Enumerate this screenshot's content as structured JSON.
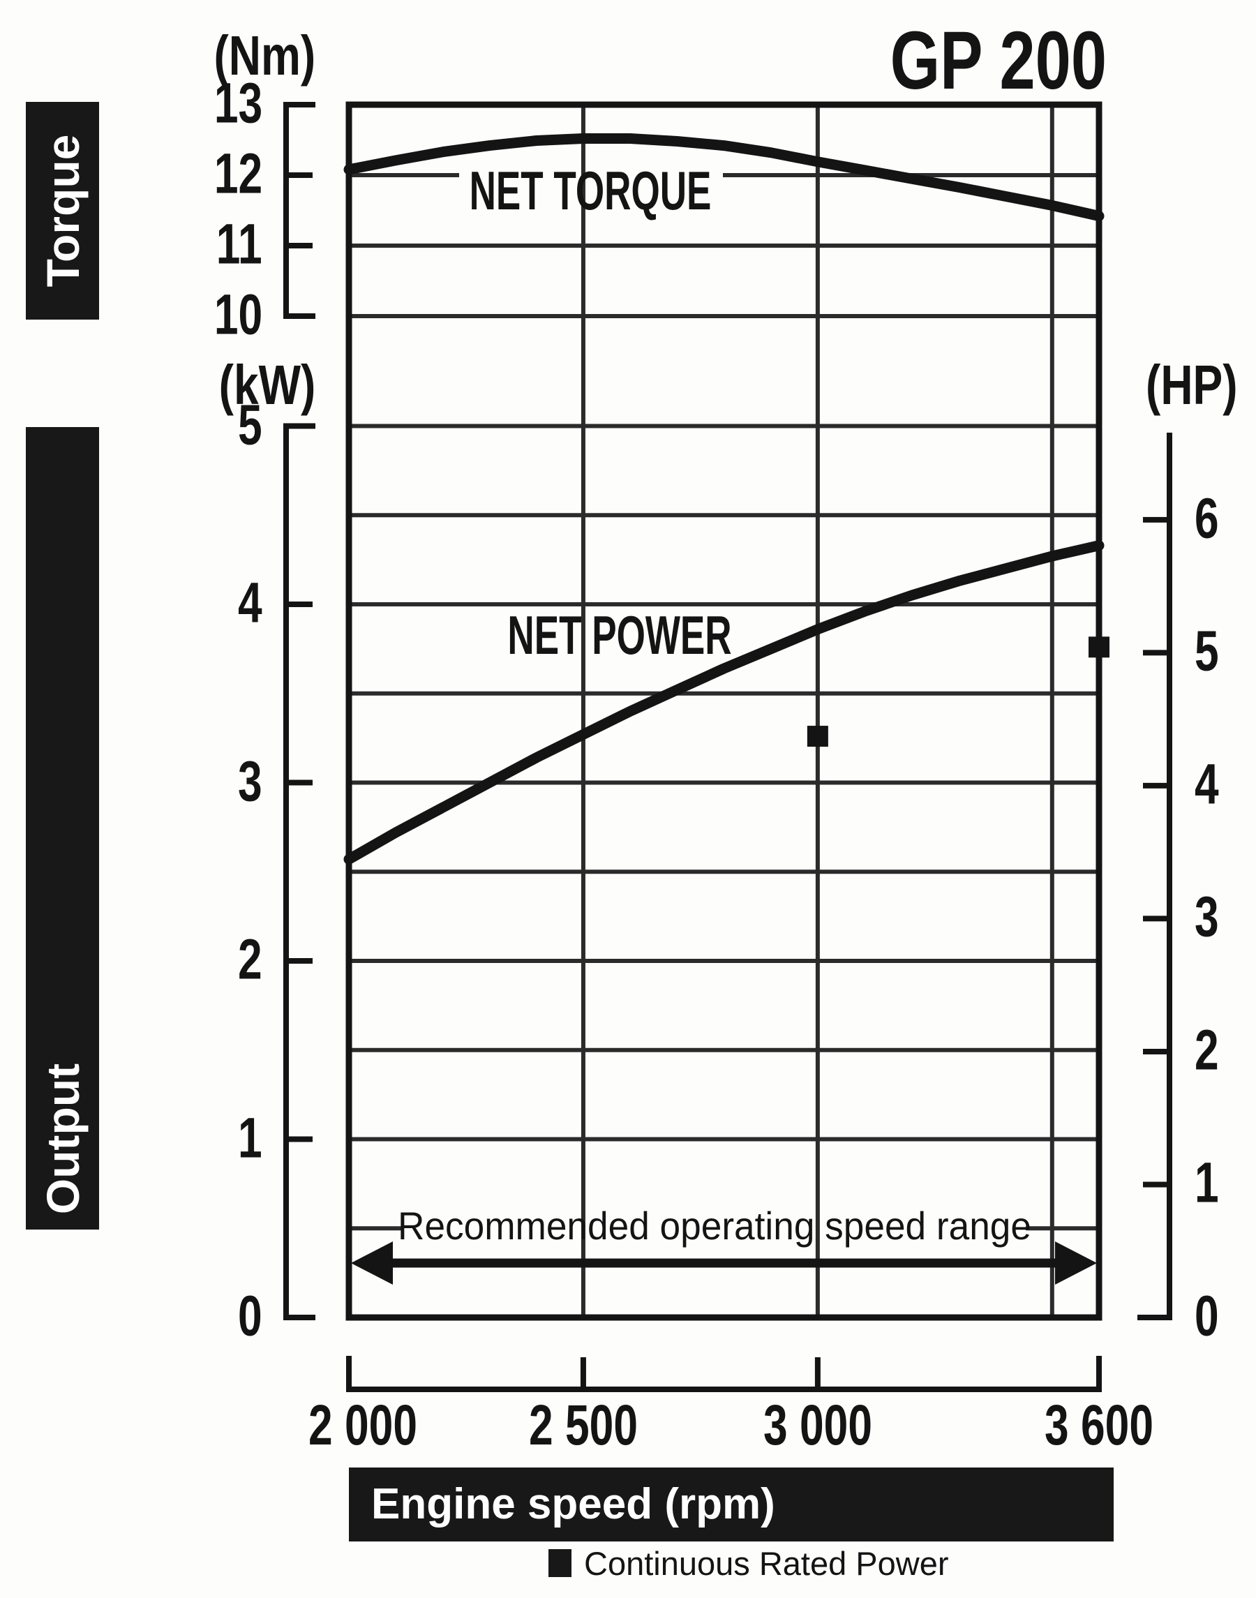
{
  "title": "GP 200",
  "side_labels": {
    "torque": "Torque",
    "output": "Output"
  },
  "torque_axis": {
    "unit": "(Nm)",
    "ticks": [
      13,
      12,
      11,
      10
    ]
  },
  "power_axis_kw": {
    "unit": "(kW)",
    "ticks": [
      5,
      4,
      3,
      2,
      1,
      0
    ]
  },
  "power_axis_hp": {
    "unit": "(HP)",
    "ticks": [
      6,
      5,
      4,
      3,
      2,
      1,
      0
    ]
  },
  "x_axis": {
    "label": "Engine speed (rpm)",
    "tick_labels": [
      "2 000",
      "2 500",
      "3 000",
      "3 600"
    ],
    "tick_values": [
      2000,
      2500,
      3000,
      3600
    ]
  },
  "legend": {
    "label": "Continuous Rated Power"
  },
  "annotations": {
    "net_torque": "NET TORQUE",
    "net_power": "NET POWER",
    "recommended": "Recommended operating speed range"
  },
  "colors": {
    "ink": "#141414",
    "grid": "#2b2b2b",
    "bar_bg": "#181818",
    "bar_text": "#ffffff"
  },
  "chart_data": {
    "type": "line",
    "title": "GP 200",
    "xlabel": "Engine speed (rpm)",
    "x_range": [
      2000,
      3600
    ],
    "x_gridlines": [
      2500,
      3000,
      3500
    ],
    "torque_ylim_nm": [
      10,
      13
    ],
    "power_ylim_kw": [
      0,
      5
    ],
    "power_gridline_step_kw": 0.5,
    "secondary_ylim_hp": [
      0,
      6
    ],
    "hp_per_kw": 1.341,
    "series": [
      {
        "name": "NET TORQUE",
        "unit": "Nm",
        "points": [
          [
            2000,
            12.08
          ],
          [
            2100,
            12.21
          ],
          [
            2200,
            12.33
          ],
          [
            2300,
            12.42
          ],
          [
            2400,
            12.49
          ],
          [
            2500,
            12.52
          ],
          [
            2600,
            12.52
          ],
          [
            2700,
            12.48
          ],
          [
            2800,
            12.42
          ],
          [
            2900,
            12.32
          ],
          [
            3000,
            12.19
          ],
          [
            3100,
            12.07
          ],
          [
            3200,
            11.95
          ],
          [
            3300,
            11.83
          ],
          [
            3400,
            11.7
          ],
          [
            3500,
            11.57
          ],
          [
            3600,
            11.42
          ]
        ]
      },
      {
        "name": "NET POWER",
        "unit": "kW",
        "points": [
          [
            2000,
            2.57
          ],
          [
            2100,
            2.72
          ],
          [
            2200,
            2.86
          ],
          [
            2300,
            3.0
          ],
          [
            2400,
            3.14
          ],
          [
            2500,
            3.27
          ],
          [
            2600,
            3.4
          ],
          [
            2700,
            3.52
          ],
          [
            2800,
            3.64
          ],
          [
            2900,
            3.75
          ],
          [
            3000,
            3.86
          ],
          [
            3100,
            3.96
          ],
          [
            3200,
            4.05
          ],
          [
            3300,
            4.13
          ],
          [
            3400,
            4.2
          ],
          [
            3500,
            4.27
          ],
          [
            3600,
            4.33
          ]
        ]
      }
    ],
    "markers": {
      "name": "Continuous Rated Power",
      "unit": "kW",
      "points": [
        [
          3000,
          3.26
        ],
        [
          3600,
          3.76
        ]
      ]
    },
    "recommended_range_rpm": [
      2000,
      3600
    ],
    "legend_position": "bottom",
    "grid": true
  }
}
